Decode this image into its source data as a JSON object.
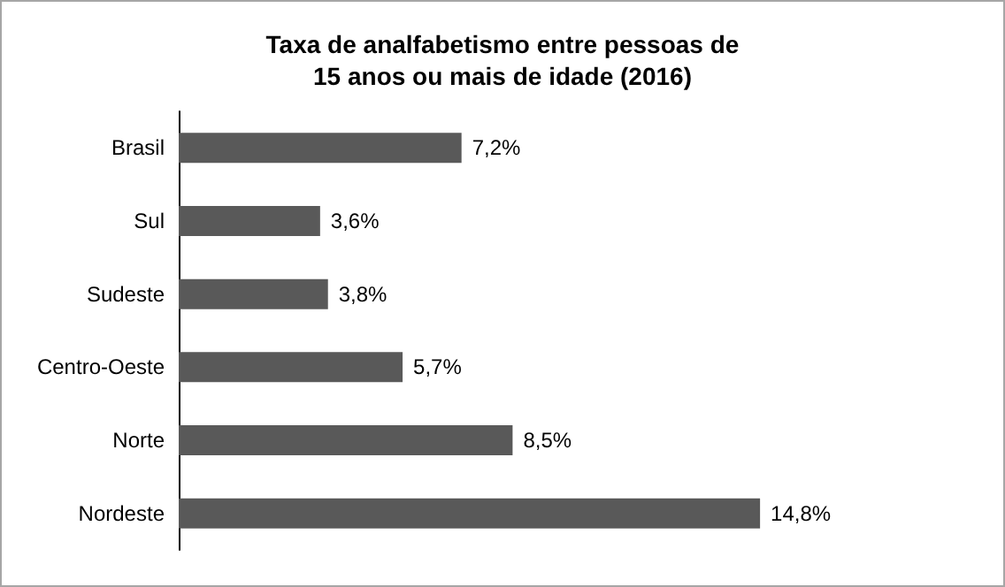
{
  "chart_data": {
    "type": "bar",
    "orientation": "horizontal",
    "title": "Taxa de analfabetismo entre pessoas de\n15 anos ou mais de idade (2016)",
    "categories": [
      "Brasil",
      "Sul",
      "Sudeste",
      "Centro-Oeste",
      "Norte",
      "Nordeste"
    ],
    "values": [
      7.2,
      3.6,
      3.8,
      5.7,
      8.5,
      14.8
    ],
    "value_labels": [
      "7,2%",
      "3,6%",
      "3,8%",
      "5,7%",
      "8,5%",
      "14,8%"
    ],
    "color": "#595959"
  }
}
